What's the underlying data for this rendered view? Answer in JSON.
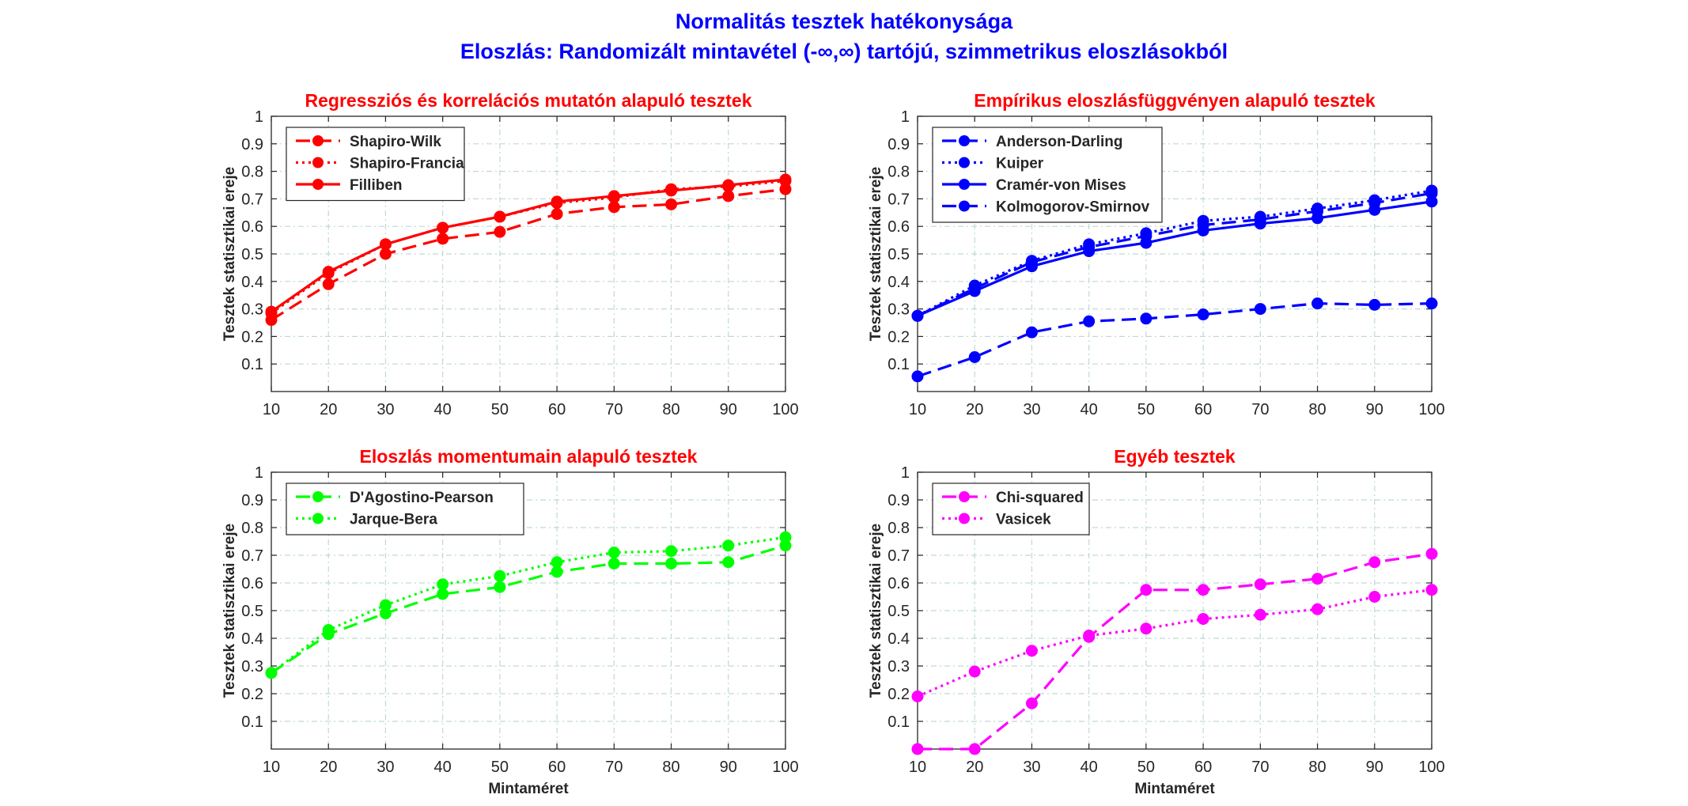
{
  "figure": {
    "title_line1": "Normalitás tesztek hatékonysága",
    "title_line2": "Eloszlás: Randomizált mintavétel (-∞,∞) tartójú, szimmetrikus eloszlásokból",
    "title_color": "#0000ff"
  },
  "chart_data": [
    {
      "type": "line",
      "title": "Regressziós és korrelációs mutatón alapuló tesztek",
      "title_color": "#ff0000",
      "xlabel": "",
      "ylabel": "Tesztek statisztikai ereje",
      "x": [
        10,
        20,
        30,
        40,
        50,
        60,
        70,
        80,
        90,
        100
      ],
      "xlim": [
        10,
        100
      ],
      "ylim": [
        0,
        1
      ],
      "xticks": [
        10,
        20,
        30,
        40,
        50,
        60,
        70,
        80,
        90,
        100
      ],
      "yticks": [
        0.1,
        0.2,
        0.3,
        0.4,
        0.5,
        0.6,
        0.7,
        0.8,
        0.9,
        1
      ],
      "grid": true,
      "legend_position": "top-left",
      "series": [
        {
          "name": "Shapiro-Wilk",
          "color": "#ff0000",
          "style": "dashed",
          "values": [
            0.26,
            0.39,
            0.5,
            0.555,
            0.58,
            0.645,
            0.67,
            0.68,
            0.71,
            0.735
          ]
        },
        {
          "name": "Shapiro-Francia",
          "color": "#ff0000",
          "style": "dotted",
          "values": [
            0.285,
            0.43,
            0.535,
            0.595,
            0.635,
            0.685,
            0.705,
            0.735,
            0.745,
            0.765
          ]
        },
        {
          "name": "Filliben",
          "color": "#ff0000",
          "style": "solid",
          "values": [
            0.29,
            0.435,
            0.535,
            0.595,
            0.635,
            0.69,
            0.71,
            0.73,
            0.75,
            0.77
          ]
        }
      ]
    },
    {
      "type": "line",
      "title": "Empírikus eloszlásfüggvényen alapuló tesztek",
      "title_color": "#ff0000",
      "xlabel": "",
      "ylabel": "Tesztek statisztikai ereje",
      "x": [
        10,
        20,
        30,
        40,
        50,
        60,
        70,
        80,
        90,
        100
      ],
      "xlim": [
        10,
        100
      ],
      "ylim": [
        0,
        1
      ],
      "xticks": [
        10,
        20,
        30,
        40,
        50,
        60,
        70,
        80,
        90,
        100
      ],
      "yticks": [
        0.1,
        0.2,
        0.3,
        0.4,
        0.5,
        0.6,
        0.7,
        0.8,
        0.9,
        1
      ],
      "grid": true,
      "legend_position": "top-left",
      "series": [
        {
          "name": "Anderson-Darling",
          "color": "#0000ff",
          "style": "dashed",
          "values": [
            0.275,
            0.375,
            0.47,
            0.525,
            0.565,
            0.605,
            0.625,
            0.655,
            0.685,
            0.72
          ]
        },
        {
          "name": "Kuiper",
          "color": "#0000ff",
          "style": "dotted",
          "values": [
            0.275,
            0.385,
            0.475,
            0.535,
            0.575,
            0.62,
            0.635,
            0.665,
            0.695,
            0.73
          ]
        },
        {
          "name": "Cramér-von Mises",
          "color": "#0000ff",
          "style": "solid",
          "values": [
            0.275,
            0.365,
            0.455,
            0.51,
            0.54,
            0.585,
            0.61,
            0.63,
            0.66,
            0.69
          ]
        },
        {
          "name": "Kolmogorov-Smirnov",
          "color": "#0000ff",
          "style": "dashed",
          "values": [
            0.055,
            0.125,
            0.215,
            0.255,
            0.265,
            0.28,
            0.3,
            0.32,
            0.315,
            0.32
          ]
        }
      ]
    },
    {
      "type": "line",
      "title": "Eloszlás momentumain alapuló tesztek",
      "title_color": "#ff0000",
      "xlabel": "Mintaméret",
      "ylabel": "Tesztek statisztikai ereje",
      "x": [
        10,
        20,
        30,
        40,
        50,
        60,
        70,
        80,
        90,
        100
      ],
      "xlim": [
        10,
        100
      ],
      "ylim": [
        0,
        1
      ],
      "xticks": [
        10,
        20,
        30,
        40,
        50,
        60,
        70,
        80,
        90,
        100
      ],
      "yticks": [
        0.1,
        0.2,
        0.3,
        0.4,
        0.5,
        0.6,
        0.7,
        0.8,
        0.9,
        1
      ],
      "grid": true,
      "legend_position": "top-left",
      "series": [
        {
          "name": "D'Agostino-Pearson",
          "color": "#00ff00",
          "style": "dashed",
          "values": [
            0.275,
            0.415,
            0.49,
            0.56,
            0.585,
            0.64,
            0.67,
            0.67,
            0.675,
            0.735
          ]
        },
        {
          "name": "Jarque-Bera",
          "color": "#00ff00",
          "style": "dotted",
          "values": [
            0.275,
            0.43,
            0.52,
            0.595,
            0.625,
            0.675,
            0.71,
            0.715,
            0.735,
            0.765
          ]
        }
      ]
    },
    {
      "type": "line",
      "title": "Egyéb tesztek",
      "title_color": "#ff0000",
      "xlabel": "Mintaméret",
      "ylabel": "Tesztek statisztikai ereje",
      "x": [
        10,
        20,
        30,
        40,
        50,
        60,
        70,
        80,
        90,
        100
      ],
      "xlim": [
        10,
        100
      ],
      "ylim": [
        0,
        1
      ],
      "xticks": [
        10,
        20,
        30,
        40,
        50,
        60,
        70,
        80,
        90,
        100
      ],
      "yticks": [
        0.1,
        0.2,
        0.3,
        0.4,
        0.5,
        0.6,
        0.7,
        0.8,
        0.9,
        1
      ],
      "grid": true,
      "legend_position": "top-left",
      "series": [
        {
          "name": "Chi-squared",
          "color": "#ff00ff",
          "style": "dashed",
          "values": [
            0.0,
            0.0,
            0.165,
            0.405,
            0.575,
            0.575,
            0.595,
            0.615,
            0.675,
            0.705
          ]
        },
        {
          "name": "Vasicek",
          "color": "#ff00ff",
          "style": "dotted",
          "values": [
            0.19,
            0.28,
            0.355,
            0.41,
            0.435,
            0.47,
            0.485,
            0.505,
            0.55,
            0.575
          ]
        }
      ]
    }
  ]
}
